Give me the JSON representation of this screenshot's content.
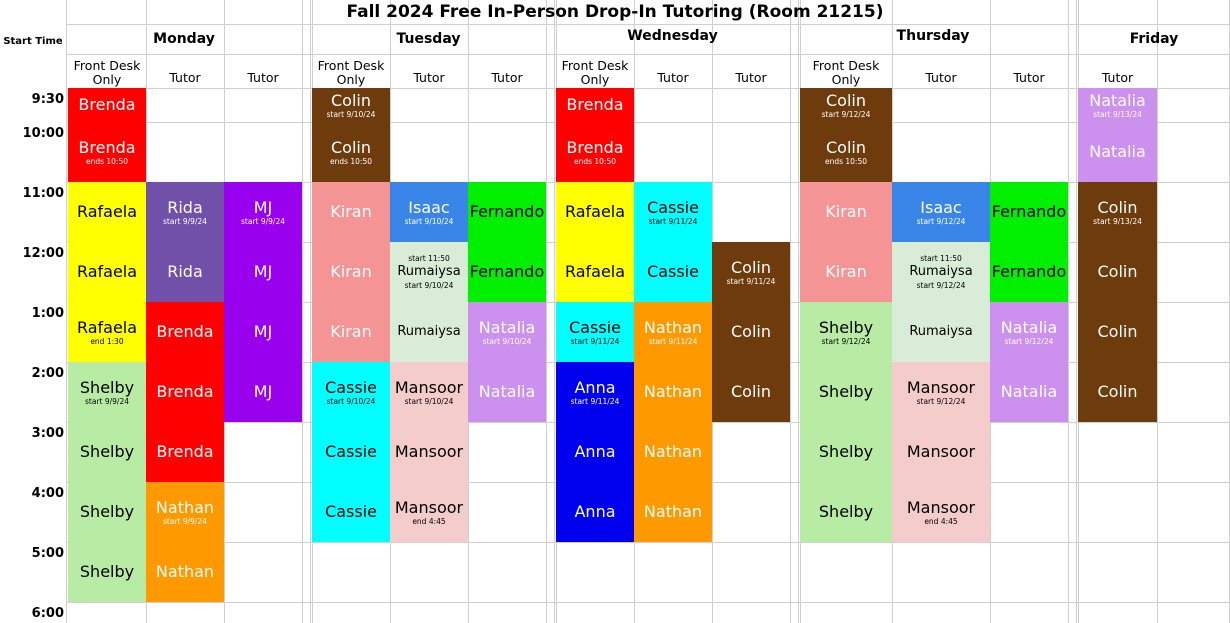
{
  "title": "Fall 2024 Free In-Person Drop-In Tutoring (Room 21215)",
  "start_time_label": "Start Time",
  "days": [
    "Monday",
    "Tuesday",
    "Wednesday",
    "Thursday",
    "Friday"
  ],
  "column_headers": {
    "front_desk": "Front Desk Only",
    "tutor": "Tutor"
  },
  "times": [
    "9:30",
    "10:00",
    "11:00",
    "12:00",
    "1:00",
    "2:00",
    "3:00",
    "4:00",
    "5:00",
    "6:00"
  ],
  "colors": {
    "red": "#ff0000",
    "brown": "#6e3b0c",
    "yellow": "#ffff00",
    "purple_dark": "#7050a8",
    "violet": "#9900ee",
    "light_green": "#b8eca4",
    "orange": "#ff9900",
    "pink": "#f49494",
    "blue": "#3a86e8",
    "green": "#00f000",
    "pale_green": "#d8ecd8",
    "lavender": "#cc90ee",
    "cyan": "#00ffff",
    "rose": "#f4cccc",
    "navy": "#0000ee"
  },
  "blocks": [
    {
      "id": "mon-fd-1",
      "name": "Brenda",
      "color": "red",
      "text": "#ffffff"
    },
    {
      "id": "mon-fd-2",
      "name": "Brenda",
      "note": "ends 10:50",
      "color": "red",
      "text": "#ffffff"
    },
    {
      "id": "mon-fd-3",
      "name": "Rafaela",
      "color": "yellow",
      "text": "#000000"
    },
    {
      "id": "mon-fd-4",
      "name": "Rafaela",
      "color": "yellow",
      "text": "#000000"
    },
    {
      "id": "mon-fd-5",
      "name": "Rafaela",
      "note": "end 1:30",
      "color": "yellow",
      "text": "#000000"
    },
    {
      "id": "mon-fd-6",
      "name": "Shelby",
      "note": "start 9/9/24",
      "color": "light_green",
      "text": "#000000"
    },
    {
      "id": "mon-fd-7",
      "name": "Shelby",
      "color": "light_green",
      "text": "#000000"
    },
    {
      "id": "mon-fd-8",
      "name": "Shelby",
      "color": "light_green",
      "text": "#000000"
    },
    {
      "id": "mon-fd-9",
      "name": "Shelby",
      "color": "light_green",
      "text": "#000000"
    },
    {
      "id": "mon-t1-1",
      "name": "Rida",
      "note": "start 9/9/24",
      "color": "purple_dark",
      "text": "#ffffff"
    },
    {
      "id": "mon-t1-2",
      "name": "Rida",
      "color": "purple_dark",
      "text": "#ffffff"
    },
    {
      "id": "mon-t1-3",
      "name": "Brenda",
      "color": "red",
      "text": "#ffffff"
    },
    {
      "id": "mon-t1-4",
      "name": "Brenda",
      "color": "red",
      "text": "#ffffff"
    },
    {
      "id": "mon-t1-5",
      "name": "Brenda",
      "color": "red",
      "text": "#ffffff"
    },
    {
      "id": "mon-t1-6",
      "name": "Nathan",
      "note": "start 9/9/24",
      "color": "orange",
      "text": "#ffffff"
    },
    {
      "id": "mon-t1-7",
      "name": "Nathan",
      "color": "orange",
      "text": "#ffffff"
    },
    {
      "id": "mon-t2-1",
      "name": "MJ",
      "note": "start 9/9/24",
      "color": "violet",
      "text": "#ffffff"
    },
    {
      "id": "mon-t2-2",
      "name": "MJ",
      "color": "violet",
      "text": "#ffffff"
    },
    {
      "id": "mon-t2-3",
      "name": "MJ",
      "color": "violet",
      "text": "#ffffff"
    },
    {
      "id": "mon-t2-4",
      "name": "MJ",
      "color": "violet",
      "text": "#ffffff"
    },
    {
      "id": "tue-fd-1",
      "name": "Colin",
      "note": "start 9/10/24",
      "color": "brown",
      "text": "#ffffff"
    },
    {
      "id": "tue-fd-2",
      "name": "Colin",
      "note": "ends 10:50",
      "color": "brown",
      "text": "#ffffff"
    },
    {
      "id": "tue-fd-3",
      "name": "Kiran",
      "color": "pink",
      "text": "#ffffff"
    },
    {
      "id": "tue-fd-4",
      "name": "Kiran",
      "color": "pink",
      "text": "#ffffff"
    },
    {
      "id": "tue-fd-5",
      "name": "Kiran",
      "color": "pink",
      "text": "#ffffff"
    },
    {
      "id": "tue-fd-6",
      "name": "Cassie",
      "note": "start 9/10/24",
      "color": "cyan",
      "text": "#000000"
    },
    {
      "id": "tue-fd-7",
      "name": "Cassie",
      "color": "cyan",
      "text": "#000000"
    },
    {
      "id": "tue-fd-8",
      "name": "Cassie",
      "color": "cyan",
      "text": "#000000"
    },
    {
      "id": "tue-t1-1",
      "name": "Isaac",
      "note": "start 9/10/24",
      "color": "blue",
      "text": "#ffffff"
    },
    {
      "id": "tue-t1-2",
      "pre": "start 11:50",
      "name": "Rumaiysa",
      "note": "start 9/10/24",
      "color": "pale_green",
      "text": "#000000",
      "small": true
    },
    {
      "id": "tue-t1-3",
      "name": "Rumaiysa",
      "color": "pale_green",
      "text": "#000000",
      "small": true
    },
    {
      "id": "tue-t1-4",
      "name": "Mansoor",
      "note": "start 9/10/24",
      "color": "rose",
      "text": "#000000"
    },
    {
      "id": "tue-t1-5",
      "name": "Mansoor",
      "color": "rose",
      "text": "#000000"
    },
    {
      "id": "tue-t1-6",
      "name": "Mansoor",
      "note": "end 4:45",
      "color": "rose",
      "text": "#000000"
    },
    {
      "id": "tue-t2-1",
      "name": "Fernando",
      "color": "green",
      "text": "#000000"
    },
    {
      "id": "tue-t2-2",
      "name": "Fernando",
      "color": "green",
      "text": "#000000"
    },
    {
      "id": "tue-t2-3",
      "name": "Natalia",
      "note": "start 9/10/24",
      "color": "lavender",
      "text": "#ffffff"
    },
    {
      "id": "tue-t2-4",
      "name": "Natalia",
      "color": "lavender",
      "text": "#ffffff"
    },
    {
      "id": "wed-fd-1",
      "name": "Brenda",
      "color": "red",
      "text": "#ffffff"
    },
    {
      "id": "wed-fd-2",
      "name": "Brenda",
      "note": "ends 10:50",
      "color": "red",
      "text": "#ffffff"
    },
    {
      "id": "wed-fd-3",
      "name": "Rafaela",
      "color": "yellow",
      "text": "#000000"
    },
    {
      "id": "wed-fd-4",
      "name": "Rafaela",
      "color": "yellow",
      "text": "#000000"
    },
    {
      "id": "wed-fd-5",
      "name": "Cassie",
      "note": "start 9/11/24",
      "color": "cyan",
      "text": "#000000"
    },
    {
      "id": "wed-fd-6",
      "name": "Anna",
      "note": "start 9/11/24",
      "color": "navy",
      "text": "#ffffff"
    },
    {
      "id": "wed-fd-7",
      "name": "Anna",
      "color": "navy",
      "text": "#ffffff"
    },
    {
      "id": "wed-fd-8",
      "name": "Anna",
      "color": "navy",
      "text": "#ffffff"
    },
    {
      "id": "wed-t1-1",
      "name": "Cassie",
      "note": "start 9/11/24",
      "color": "cyan",
      "text": "#000000"
    },
    {
      "id": "wed-t1-2",
      "name": "Cassie",
      "color": "cyan",
      "text": "#000000"
    },
    {
      "id": "wed-t1-3",
      "name": "Nathan",
      "note": "start 9/11/24",
      "color": "orange",
      "text": "#ffffff"
    },
    {
      "id": "wed-t1-4",
      "name": "Nathan",
      "color": "orange",
      "text": "#ffffff"
    },
    {
      "id": "wed-t1-5",
      "name": "Nathan",
      "color": "orange",
      "text": "#ffffff"
    },
    {
      "id": "wed-t1-6",
      "name": "Nathan",
      "color": "orange",
      "text": "#ffffff"
    },
    {
      "id": "wed-t2-1",
      "name": "Colin",
      "note": "start 9/11/24",
      "color": "brown",
      "text": "#ffffff"
    },
    {
      "id": "wed-t2-2",
      "name": "Colin",
      "color": "brown",
      "text": "#ffffff"
    },
    {
      "id": "wed-t2-3",
      "name": "Colin",
      "color": "brown",
      "text": "#ffffff"
    },
    {
      "id": "thu-fd-1",
      "name": "Colin",
      "note": "start 9/12/24",
      "color": "brown",
      "text": "#ffffff"
    },
    {
      "id": "thu-fd-2",
      "name": "Colin",
      "note": "ends 10:50",
      "color": "brown",
      "text": "#ffffff"
    },
    {
      "id": "thu-fd-3",
      "name": "Kiran",
      "color": "pink",
      "text": "#ffffff"
    },
    {
      "id": "thu-fd-4",
      "name": "Kiran",
      "color": "pink",
      "text": "#ffffff"
    },
    {
      "id": "thu-fd-5",
      "name": "Shelby",
      "note": "start 9/12/24",
      "color": "light_green",
      "text": "#000000"
    },
    {
      "id": "thu-fd-6",
      "name": "Shelby",
      "color": "light_green",
      "text": "#000000"
    },
    {
      "id": "thu-fd-7",
      "name": "Shelby",
      "color": "light_green",
      "text": "#000000"
    },
    {
      "id": "thu-fd-8",
      "name": "Shelby",
      "color": "light_green",
      "text": "#000000"
    },
    {
      "id": "thu-t1-1",
      "name": "Isaac",
      "note": "start 9/12/24",
      "color": "blue",
      "text": "#ffffff"
    },
    {
      "id": "thu-t1-2",
      "pre": "start 11:50",
      "name": "Rumaiysa",
      "note": "start 9/12/24",
      "color": "pale_green",
      "text": "#000000",
      "small": true
    },
    {
      "id": "thu-t1-3",
      "name": "Rumaiysa",
      "color": "pale_green",
      "text": "#000000",
      "small": true
    },
    {
      "id": "thu-t1-4",
      "name": "Mansoor",
      "note": "start 9/12/24",
      "color": "rose",
      "text": "#000000"
    },
    {
      "id": "thu-t1-5",
      "name": "Mansoor",
      "color": "rose",
      "text": "#000000"
    },
    {
      "id": "thu-t1-6",
      "name": "Mansoor",
      "note": "end 4:45",
      "color": "rose",
      "text": "#000000"
    },
    {
      "id": "thu-t2-1",
      "name": "Fernando",
      "color": "green",
      "text": "#000000"
    },
    {
      "id": "thu-t2-2",
      "name": "Fernando",
      "color": "green",
      "text": "#000000"
    },
    {
      "id": "thu-t2-3",
      "name": "Natalia",
      "note": "start 9/12/24",
      "color": "lavender",
      "text": "#ffffff"
    },
    {
      "id": "thu-t2-4",
      "name": "Natalia",
      "color": "lavender",
      "text": "#ffffff"
    },
    {
      "id": "fri-t1-1",
      "name": "Natalia",
      "note": "start 9/13/24",
      "color": "lavender",
      "text": "#ffffff"
    },
    {
      "id": "fri-t1-2",
      "name": "Natalia",
      "color": "lavender",
      "text": "#ffffff"
    },
    {
      "id": "fri-t1-3",
      "name": "Colin",
      "note": "start 9/13/24",
      "color": "brown",
      "text": "#ffffff"
    },
    {
      "id": "fri-t1-4",
      "name": "Colin",
      "color": "brown",
      "text": "#ffffff"
    },
    {
      "id": "fri-t1-5",
      "name": "Colin",
      "color": "brown",
      "text": "#ffffff"
    },
    {
      "id": "fri-t1-6",
      "name": "Colin",
      "color": "brown",
      "text": "#ffffff"
    }
  ]
}
